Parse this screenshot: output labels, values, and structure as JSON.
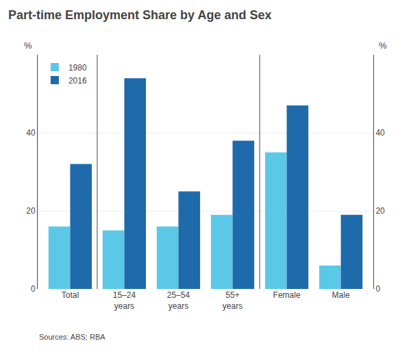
{
  "chart_data": {
    "type": "bar",
    "title": "Part-time Employment Share by Age and Sex",
    "categories": [
      "Total",
      "15–24\nyears",
      "25–54\nyears",
      "55+\nyears",
      "Female",
      "Male"
    ],
    "series": [
      {
        "name": "1980",
        "color": "#5bc8e8",
        "values": [
          16,
          15,
          16,
          19,
          35,
          6
        ]
      },
      {
        "name": "2016",
        "color": "#1f6aab",
        "values": [
          32,
          54,
          25,
          38,
          47,
          19
        ]
      }
    ],
    "ylabel": "%",
    "ylim": [
      0,
      60
    ],
    "yticks": [
      0,
      20,
      40
    ],
    "y2label": "%",
    "y2lim": [
      0,
      60
    ],
    "y2ticks": [
      0,
      20,
      40
    ],
    "grid": true,
    "legend": "upper left",
    "annotations": [
      "Sources: ABS; RBA"
    ]
  }
}
